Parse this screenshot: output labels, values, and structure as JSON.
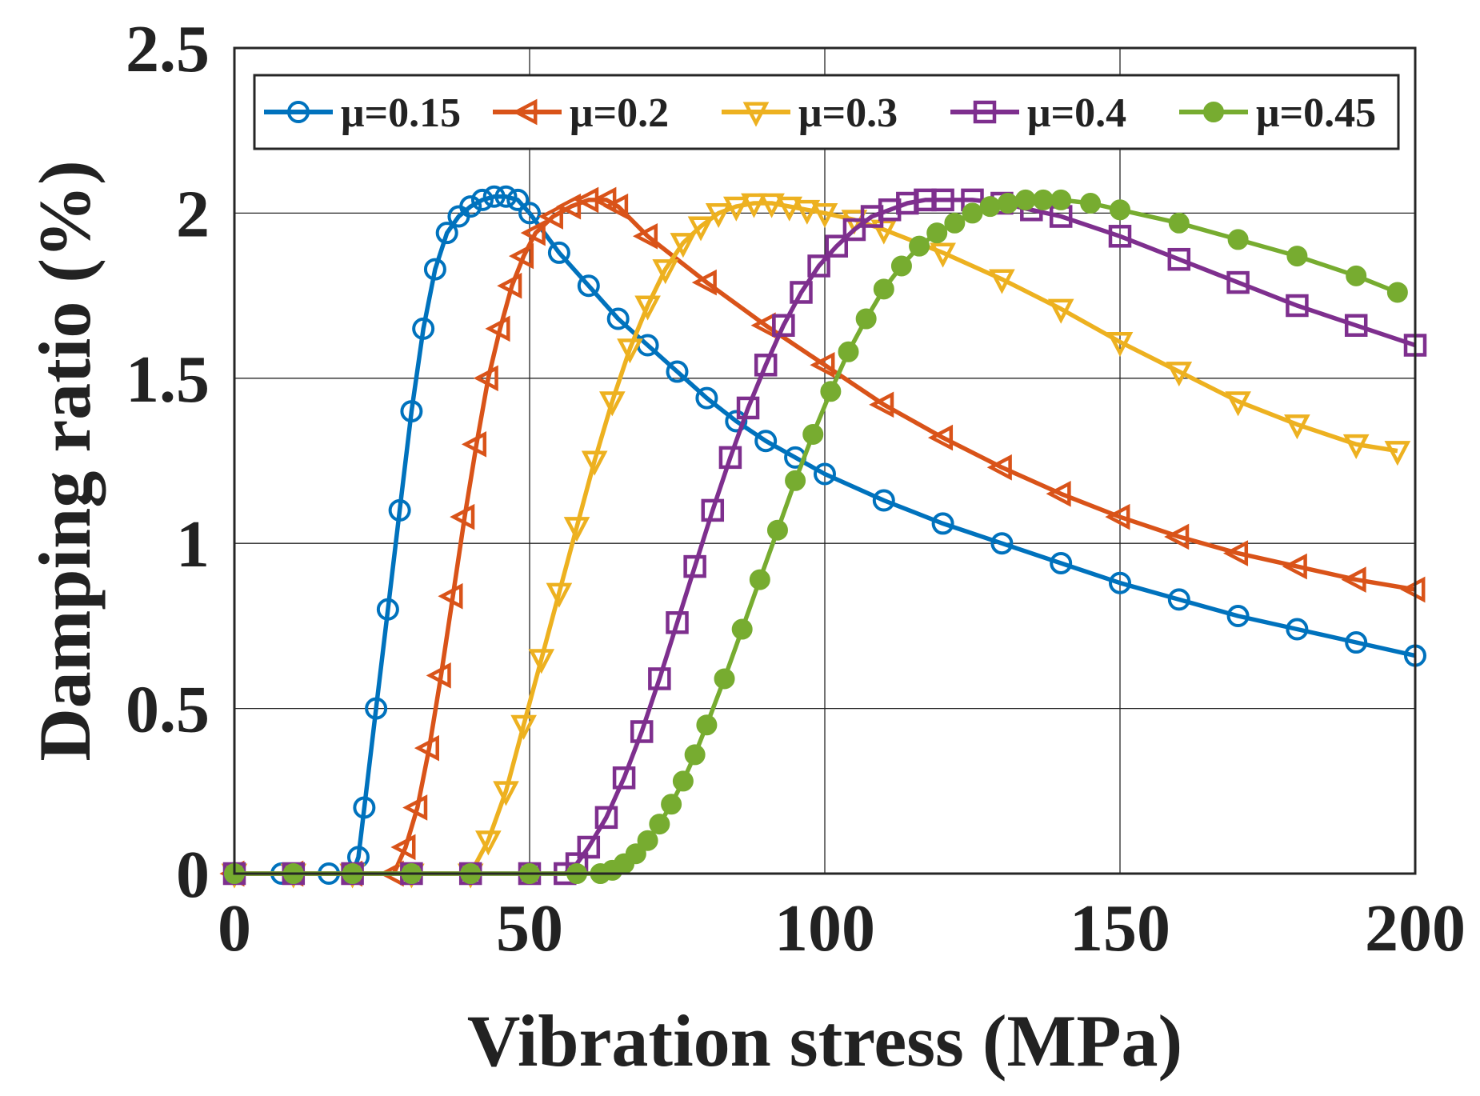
{
  "chart_data": {
    "type": "line",
    "title": "",
    "xlabel": "Vibration stress (MPa)",
    "ylabel": "Damping ratio (%)",
    "xlim": [
      0,
      200
    ],
    "ylim": [
      0,
      2.5
    ],
    "grid": true,
    "legend_position": "top, inside axes",
    "xticks": [
      "0",
      "50",
      "100",
      "150",
      "200"
    ],
    "yticks": [
      "0",
      "0.5",
      "1",
      "1.5",
      "2",
      "2.5"
    ],
    "xtick_values": [
      0,
      50,
      100,
      150,
      200
    ],
    "ytick_values": [
      0,
      0.5,
      1,
      1.5,
      2,
      2.5
    ],
    "series": [
      {
        "name": "μ=0.15",
        "color": "#0072BD",
        "marker": "circle-open",
        "x": [
          0,
          8,
          16,
          20,
          21,
          22,
          24,
          26,
          28,
          30,
          32,
          34,
          36,
          38,
          40,
          42,
          44,
          46,
          48,
          50,
          55,
          60,
          65,
          70,
          75,
          80,
          85,
          90,
          95,
          100,
          110,
          120,
          130,
          140,
          150,
          160,
          170,
          180,
          190,
          200
        ],
        "y": [
          0,
          0,
          0,
          0,
          0.05,
          0.2,
          0.5,
          0.8,
          1.1,
          1.4,
          1.65,
          1.83,
          1.94,
          1.99,
          2.02,
          2.04,
          2.05,
          2.05,
          2.04,
          2.0,
          1.88,
          1.78,
          1.68,
          1.6,
          1.52,
          1.44,
          1.37,
          1.31,
          1.26,
          1.21,
          1.13,
          1.06,
          1.0,
          0.94,
          0.88,
          0.83,
          0.78,
          0.74,
          0.7,
          0.66
        ]
      },
      {
        "name": "μ=0.2",
        "color": "#D95319",
        "marker": "triangle-left",
        "x": [
          0,
          10,
          20,
          27,
          29,
          31,
          33,
          35,
          37,
          39,
          41,
          43,
          45,
          47,
          49,
          51,
          54,
          57,
          60,
          63,
          65,
          70,
          80,
          90,
          100,
          110,
          120,
          130,
          140,
          150,
          160,
          170,
          180,
          190,
          200
        ],
        "y": [
          0,
          0,
          0,
          0,
          0.08,
          0.2,
          0.38,
          0.6,
          0.84,
          1.08,
          1.3,
          1.5,
          1.65,
          1.78,
          1.87,
          1.94,
          1.99,
          2.02,
          2.04,
          2.04,
          2.02,
          1.93,
          1.79,
          1.66,
          1.54,
          1.42,
          1.32,
          1.23,
          1.15,
          1.08,
          1.02,
          0.97,
          0.93,
          0.89,
          0.86
        ]
      },
      {
        "name": "μ=0.3",
        "color": "#EDB120",
        "marker": "triangle-down",
        "x": [
          0,
          10,
          20,
          30,
          40,
          43,
          46,
          49,
          52,
          55,
          58,
          61,
          64,
          67,
          70,
          73,
          76,
          79,
          82,
          85,
          88,
          91,
          94,
          97,
          100,
          105,
          110,
          120,
          130,
          140,
          150,
          160,
          170,
          180,
          190,
          197
        ],
        "y": [
          0,
          0,
          0,
          0,
          0,
          0.1,
          0.25,
          0.45,
          0.65,
          0.85,
          1.05,
          1.25,
          1.43,
          1.59,
          1.72,
          1.83,
          1.91,
          1.96,
          2.0,
          2.02,
          2.03,
          2.03,
          2.02,
          2.01,
          2.0,
          1.98,
          1.95,
          1.88,
          1.8,
          1.71,
          1.61,
          1.52,
          1.43,
          1.36,
          1.3,
          1.28
        ]
      },
      {
        "name": "μ=0.4",
        "color": "#7E2F8E",
        "marker": "square",
        "x": [
          0,
          10,
          20,
          30,
          40,
          50,
          56,
          58,
          60,
          63,
          66,
          69,
          72,
          75,
          78,
          81,
          84,
          87,
          90,
          93,
          96,
          99,
          102,
          105,
          108,
          111,
          114,
          117,
          120,
          125,
          130,
          135,
          140,
          150,
          160,
          170,
          180,
          190,
          200
        ],
        "y": [
          0,
          0,
          0,
          0,
          0,
          0,
          0,
          0.03,
          0.08,
          0.17,
          0.29,
          0.43,
          0.59,
          0.76,
          0.93,
          1.1,
          1.26,
          1.41,
          1.54,
          1.66,
          1.76,
          1.84,
          1.9,
          1.95,
          1.99,
          2.01,
          2.03,
          2.04,
          2.04,
          2.04,
          2.03,
          2.01,
          1.99,
          1.93,
          1.86,
          1.79,
          1.72,
          1.66,
          1.6
        ]
      },
      {
        "name": "μ=0.45",
        "color": "#77AC30",
        "marker": "circle-filled",
        "x": [
          0,
          10,
          20,
          30,
          40,
          50,
          58,
          62,
          64,
          66,
          68,
          70,
          72,
          74,
          76,
          78,
          80,
          83,
          86,
          89,
          92,
          95,
          98,
          101,
          104,
          107,
          110,
          113,
          116,
          119,
          122,
          125,
          128,
          131,
          134,
          137,
          140,
          145,
          150,
          160,
          170,
          180,
          190,
          197
        ],
        "y": [
          0,
          0,
          0,
          0,
          0,
          0,
          0,
          0,
          0.01,
          0.03,
          0.06,
          0.1,
          0.15,
          0.21,
          0.28,
          0.36,
          0.45,
          0.59,
          0.74,
          0.89,
          1.04,
          1.19,
          1.33,
          1.46,
          1.58,
          1.68,
          1.77,
          1.84,
          1.9,
          1.94,
          1.97,
          2.0,
          2.02,
          2.03,
          2.04,
          2.04,
          2.04,
          2.03,
          2.01,
          1.97,
          1.92,
          1.87,
          1.81,
          1.76
        ]
      }
    ]
  }
}
